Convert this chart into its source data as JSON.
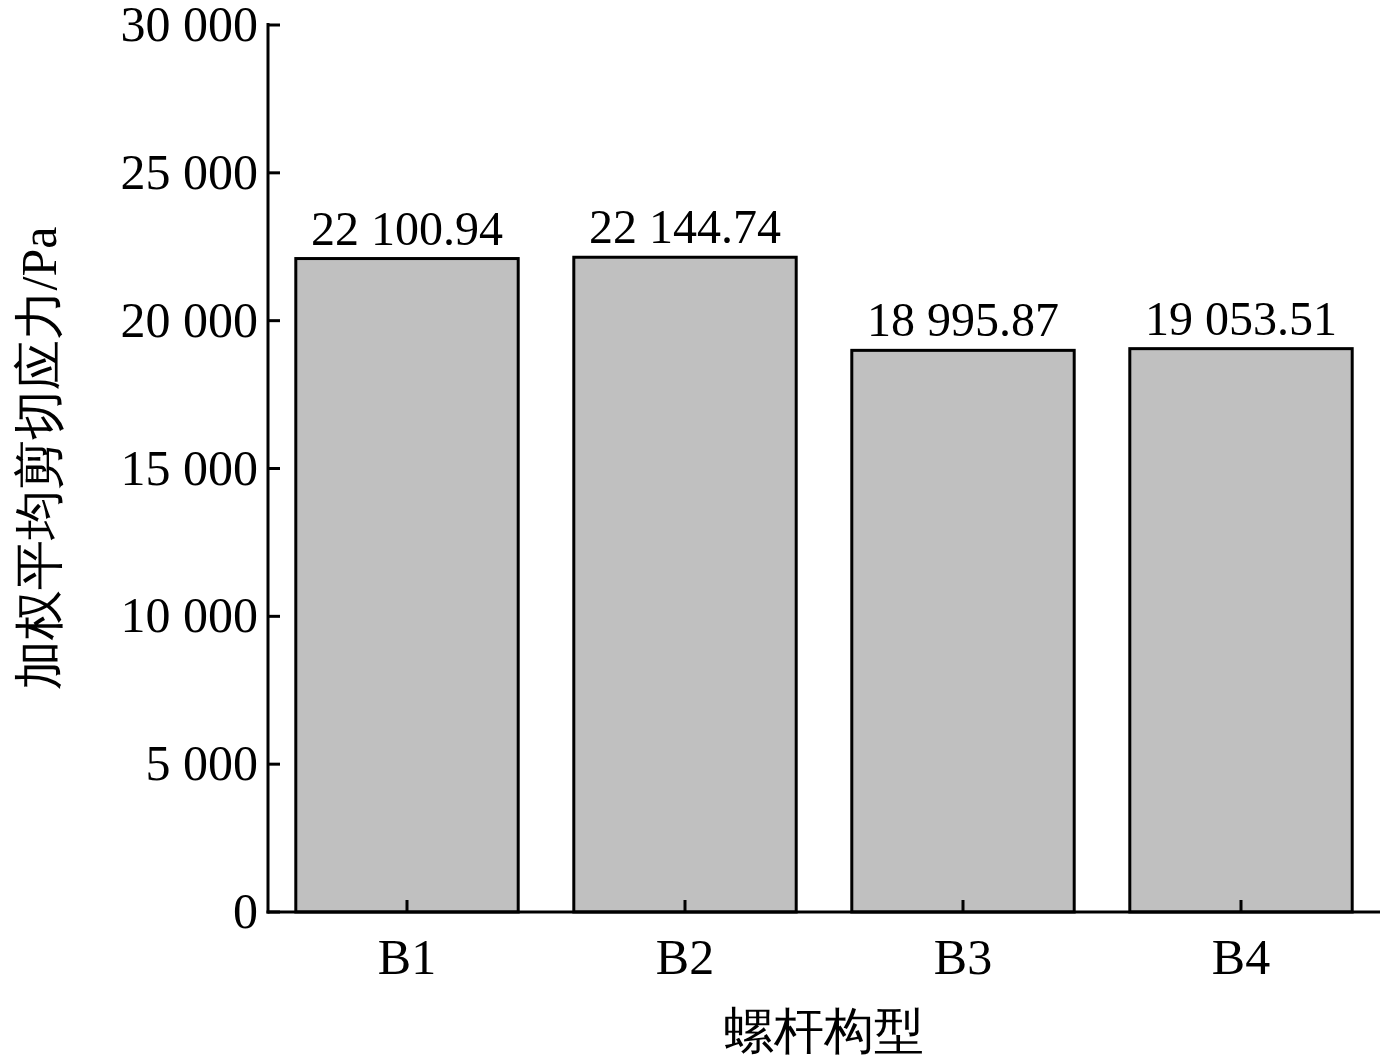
{
  "chart_data": {
    "type": "bar",
    "xlabel": "螺杆构型",
    "ylabel": "加权平均剪切应力/Pa",
    "categories": [
      "B1",
      "B2",
      "B3",
      "B4"
    ],
    "values": [
      22100.94,
      22144.74,
      18995.87,
      19053.51
    ],
    "value_labels": [
      "22 100.94",
      "22 144.74",
      "18 995.87",
      "19 053.51"
    ],
    "color": "#c0c0c0",
    "ylim": [
      0,
      30000
    ],
    "yticks": [
      0,
      {
        "value": 5000,
        "label": "5 000"
      },
      {
        "value": 10000,
        "label": "10 000"
      },
      {
        "value": 15000,
        "label": "15 000"
      },
      {
        "value": 20000,
        "label": "20 000"
      },
      {
        "value": 25000,
        "label": "25 000"
      },
      {
        "value": 30000,
        "label": "30 000"
      }
    ],
    "grid": false
  }
}
